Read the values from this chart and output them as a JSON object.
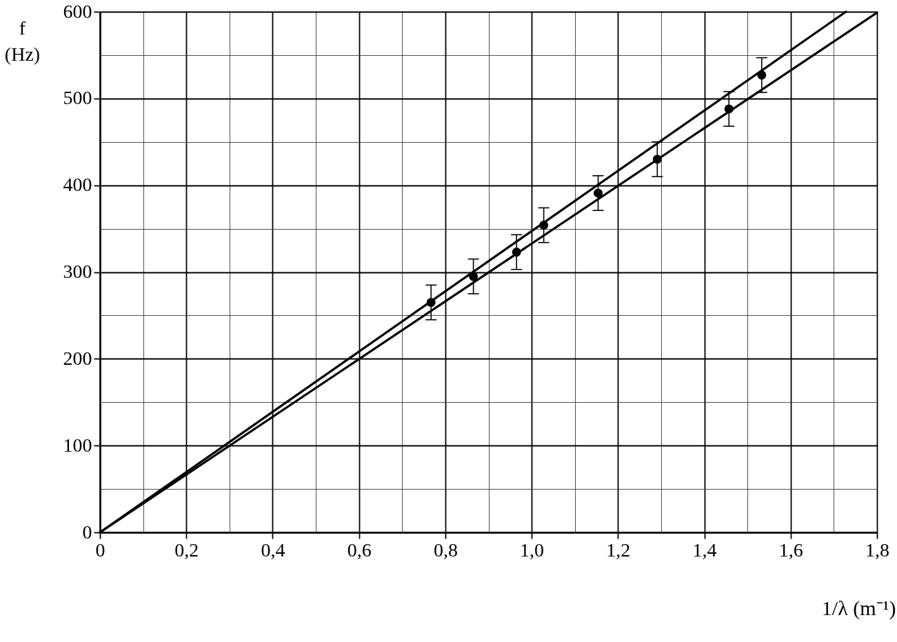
{
  "chart_data": {
    "type": "scatter",
    "xlabel": "1/λ (m⁻¹)",
    "ylabel": "f (Hz)",
    "xlim": [
      0,
      1.8
    ],
    "ylim": [
      0,
      600
    ],
    "xticks": [
      0,
      {
        "value": 0.1,
        "label": null
      },
      {
        "value": 0.2,
        "label": "0,2"
      },
      {
        "value": 0.3,
        "label": null
      },
      {
        "value": 0.4,
        "label": "0,4"
      },
      {
        "value": 0.5,
        "label": null
      },
      {
        "value": 0.6,
        "label": "0,6"
      },
      {
        "value": 0.7,
        "label": null
      },
      {
        "value": 0.8,
        "label": "0,8"
      },
      {
        "value": 0.9,
        "label": null
      },
      {
        "value": 1.0,
        "label": "1,0"
      },
      {
        "value": 1.1,
        "label": null
      },
      {
        "value": 1.2,
        "label": "1,2"
      },
      {
        "value": 1.3,
        "label": null
      },
      {
        "value": 1.4,
        "label": "1,4"
      },
      {
        "value": 1.5,
        "label": null
      },
      {
        "value": 1.6,
        "label": "1,6"
      },
      {
        "value": 1.7,
        "label": null
      },
      {
        "value": 1.8,
        "label": "1,8"
      }
    ],
    "yticks": [
      0,
      {
        "value": 50,
        "label": null
      },
      100,
      {
        "value": 150,
        "label": null
      },
      200,
      {
        "value": 250,
        "label": null
      },
      300,
      {
        "value": 350,
        "label": null
      },
      400,
      {
        "value": 450,
        "label": null
      },
      500,
      {
        "value": 550,
        "label": null
      },
      600
    ],
    "grid": true,
    "series": [
      {
        "type": "line",
        "x": [
          0,
          1.728
        ],
        "values": [
          0,
          600
        ],
        "color": "#000000",
        "marker": "none"
      },
      {
        "type": "line",
        "x": [
          0,
          1.8
        ],
        "values": [
          0,
          599
        ],
        "color": "#000000",
        "marker": "none"
      },
      {
        "x": [
          0.767,
          0.865,
          0.965,
          1.028,
          1.154,
          1.291,
          1.457,
          1.533
        ],
        "values": [
          265,
          295,
          323,
          354,
          391,
          430,
          488,
          527
        ],
        "errors": [
          20,
          20,
          20,
          20,
          20,
          20,
          20,
          20
        ],
        "color": "#000000",
        "marker": "circle"
      }
    ]
  }
}
